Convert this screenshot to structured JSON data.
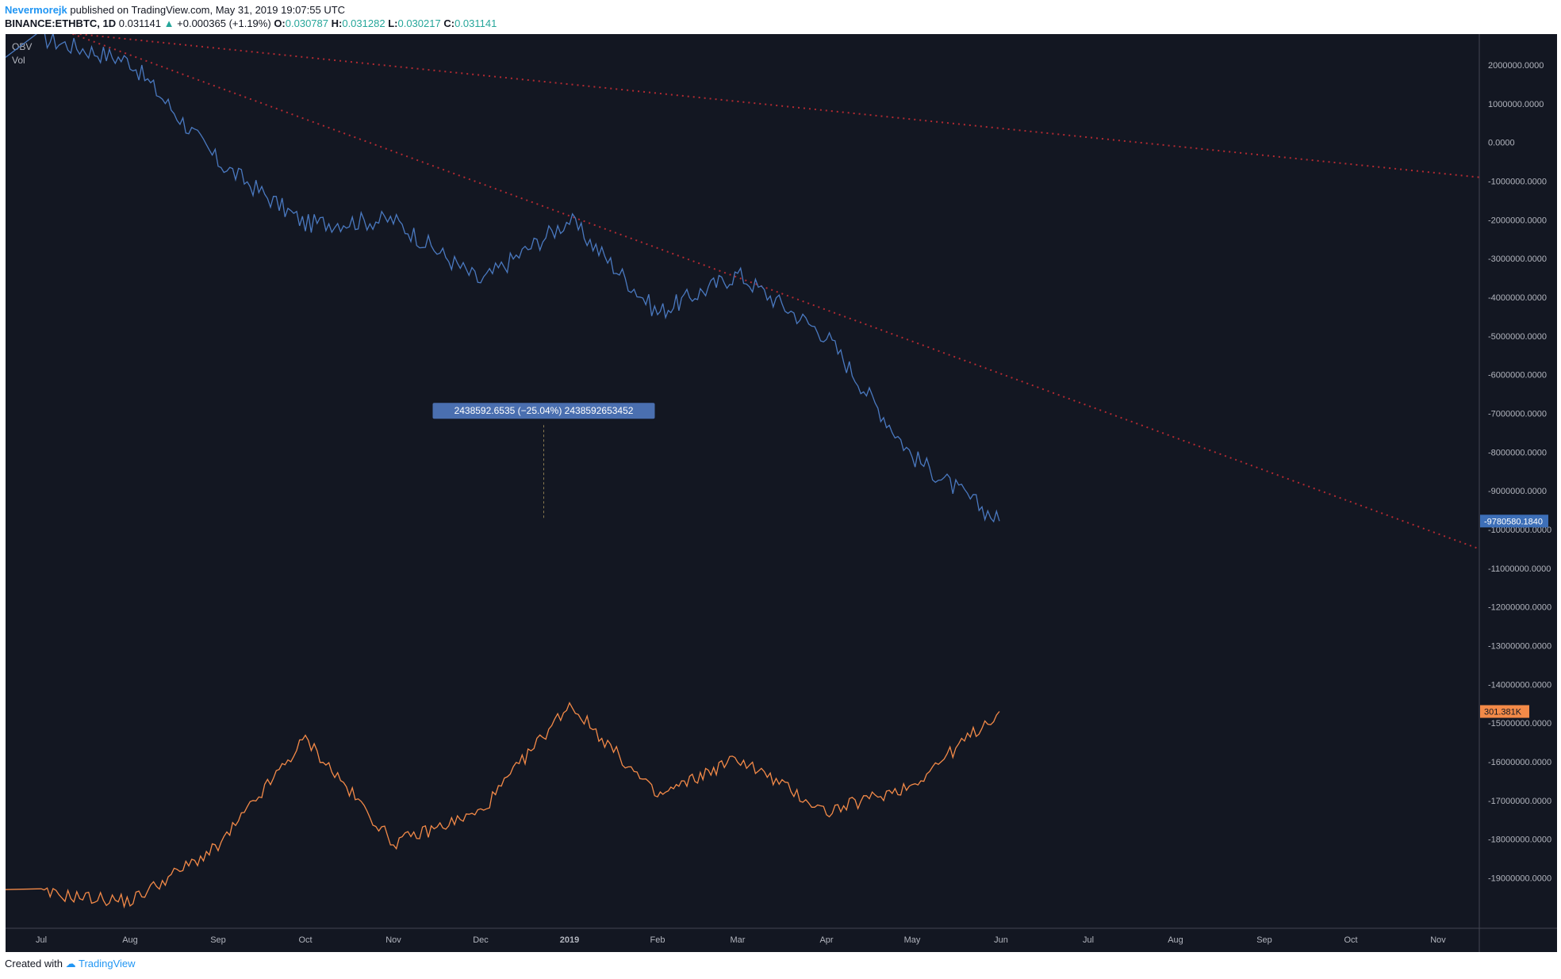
{
  "header": {
    "author": "Nevermorejk",
    "published": "published on TradingView.com, May 31, 2019 19:07:55 UTC",
    "symbol": "BINANCE:ETHBTC, 1D",
    "last": "0.031141",
    "change_arrow": "▲",
    "change": "+0.000365 (+1.19%)",
    "o_label": "O:",
    "o": "0.030787",
    "h_label": "H:",
    "h": "0.031282",
    "l_label": "L:",
    "l": "0.030217",
    "c_label": "C:",
    "c": "0.031141"
  },
  "footer": {
    "created_with": "Created with",
    "brand": "TradingView"
  },
  "colors": {
    "background": "#131722",
    "obv_line": "#4a79c0",
    "vol_line": "#f48a48",
    "trendline": "#b22a32",
    "measure_box": "#4f3b1d",
    "measure_label_bg": "#4a6fb0",
    "obv_badge": "#3d6fb8",
    "vol_badge": "#f48a48"
  },
  "indicators": [
    "OBV",
    "Vol"
  ],
  "chart_data": {
    "type": "line",
    "x": [
      "Jul",
      "Aug",
      "Sep",
      "Oct",
      "Nov",
      "Dec",
      "2019",
      "Feb",
      "Mar",
      "Apr",
      "May",
      "Jun",
      "Jul",
      "Aug",
      "Sep",
      "Oct",
      "Nov"
    ],
    "yticks": [
      "2000000.0000",
      "1000000.0000",
      "0.0000",
      "-1000000.0000",
      "-2000000.0000",
      "-3000000.0000",
      "-4000000.0000",
      "-5000000.0000",
      "-6000000.0000",
      "-7000000.0000",
      "-8000000.0000",
      "-9000000.0000",
      "-10000000.0000",
      "-11000000.0000",
      "-12000000.0000",
      "-13000000.0000",
      "-14000000.0000",
      "-15000000.0000",
      "-16000000.0000",
      "-17000000.0000",
      "-18000000.0000",
      "-19000000.0000"
    ],
    "ylim": [
      -20300000,
      2800000
    ],
    "series": [
      {
        "name": "OBV",
        "values_month_start": [
          2700000,
          2100000,
          -500000,
          -2100000,
          -2000000,
          -3600000,
          -2000000,
          -4400000,
          -3400000,
          -5000000,
          -8100000,
          -9780580
        ]
      },
      {
        "name": "Vol",
        "values_month_start": [
          -19400000,
          -19600000,
          -18200000,
          -15400000,
          -18100000,
          -17300000,
          -14500000,
          -16900000,
          -15900000,
          -17300000,
          -16600000,
          -14700000
        ]
      }
    ],
    "trendlines": [
      {
        "from": [
          "Jul",
          2900000
        ],
        "to": [
          "Nov",
          -900000
        ]
      },
      {
        "from": [
          "Jul",
          3100000
        ],
        "to": [
          "Nov",
          -10500000
        ]
      }
    ],
    "measure": {
      "label": "2438592.6535 (−25.04%) 2438592653452",
      "from_x": "Jun",
      "to_x": "Jul",
      "top": -7300000,
      "bottom": -9750000
    },
    "last_values": {
      "obv": "-9780580.1840",
      "vol": "301.381K"
    }
  }
}
